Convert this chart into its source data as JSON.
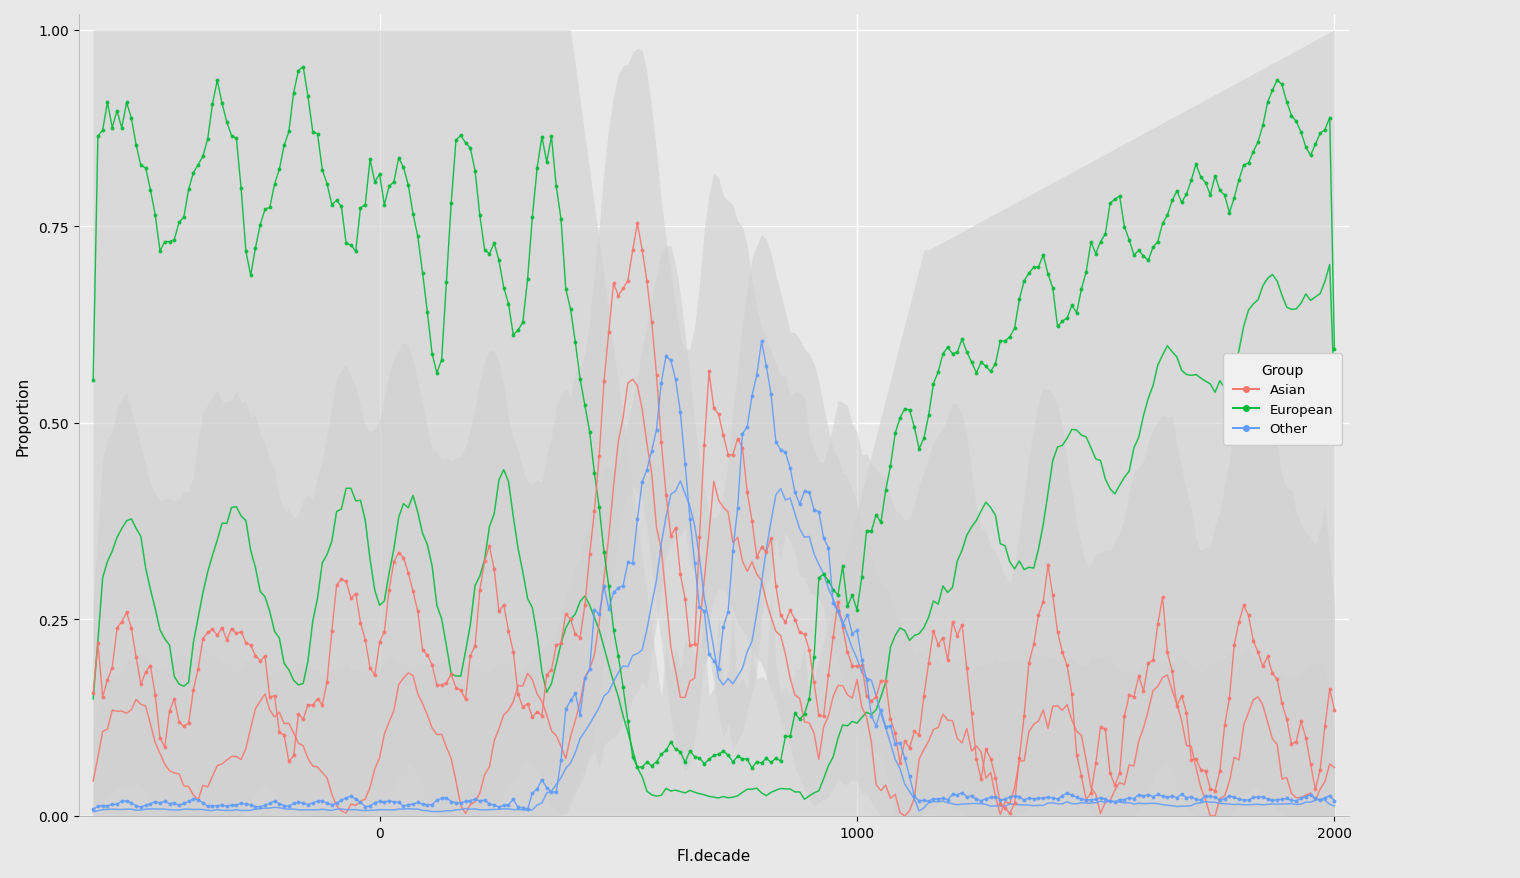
{
  "title": "",
  "xlabel": "Fl.decade",
  "ylabel": "Proportion",
  "xlim": [
    -630,
    2030
  ],
  "ylim": [
    0.0,
    1.02
  ],
  "xticks": [
    0,
    1000,
    2000
  ],
  "xtick_labels": [
    "0",
    "1000",
    "2000"
  ],
  "yticks": [
    0.0,
    0.25,
    0.5,
    0.75,
    1.0
  ],
  "ytick_labels": [
    "0.00",
    "0.25",
    "0.50",
    "0.75",
    "1.00"
  ],
  "colors": {
    "asian": "#F8766D",
    "european": "#00BA38",
    "other": "#619CFF",
    "shade": "#D0D0D0",
    "background": "#E8E8E8",
    "panel_background": "#E8E8E8",
    "grid": "#FFFFFF"
  },
  "legend": {
    "title": "Group",
    "entries": [
      "Asian",
      "European",
      "Other"
    ]
  }
}
